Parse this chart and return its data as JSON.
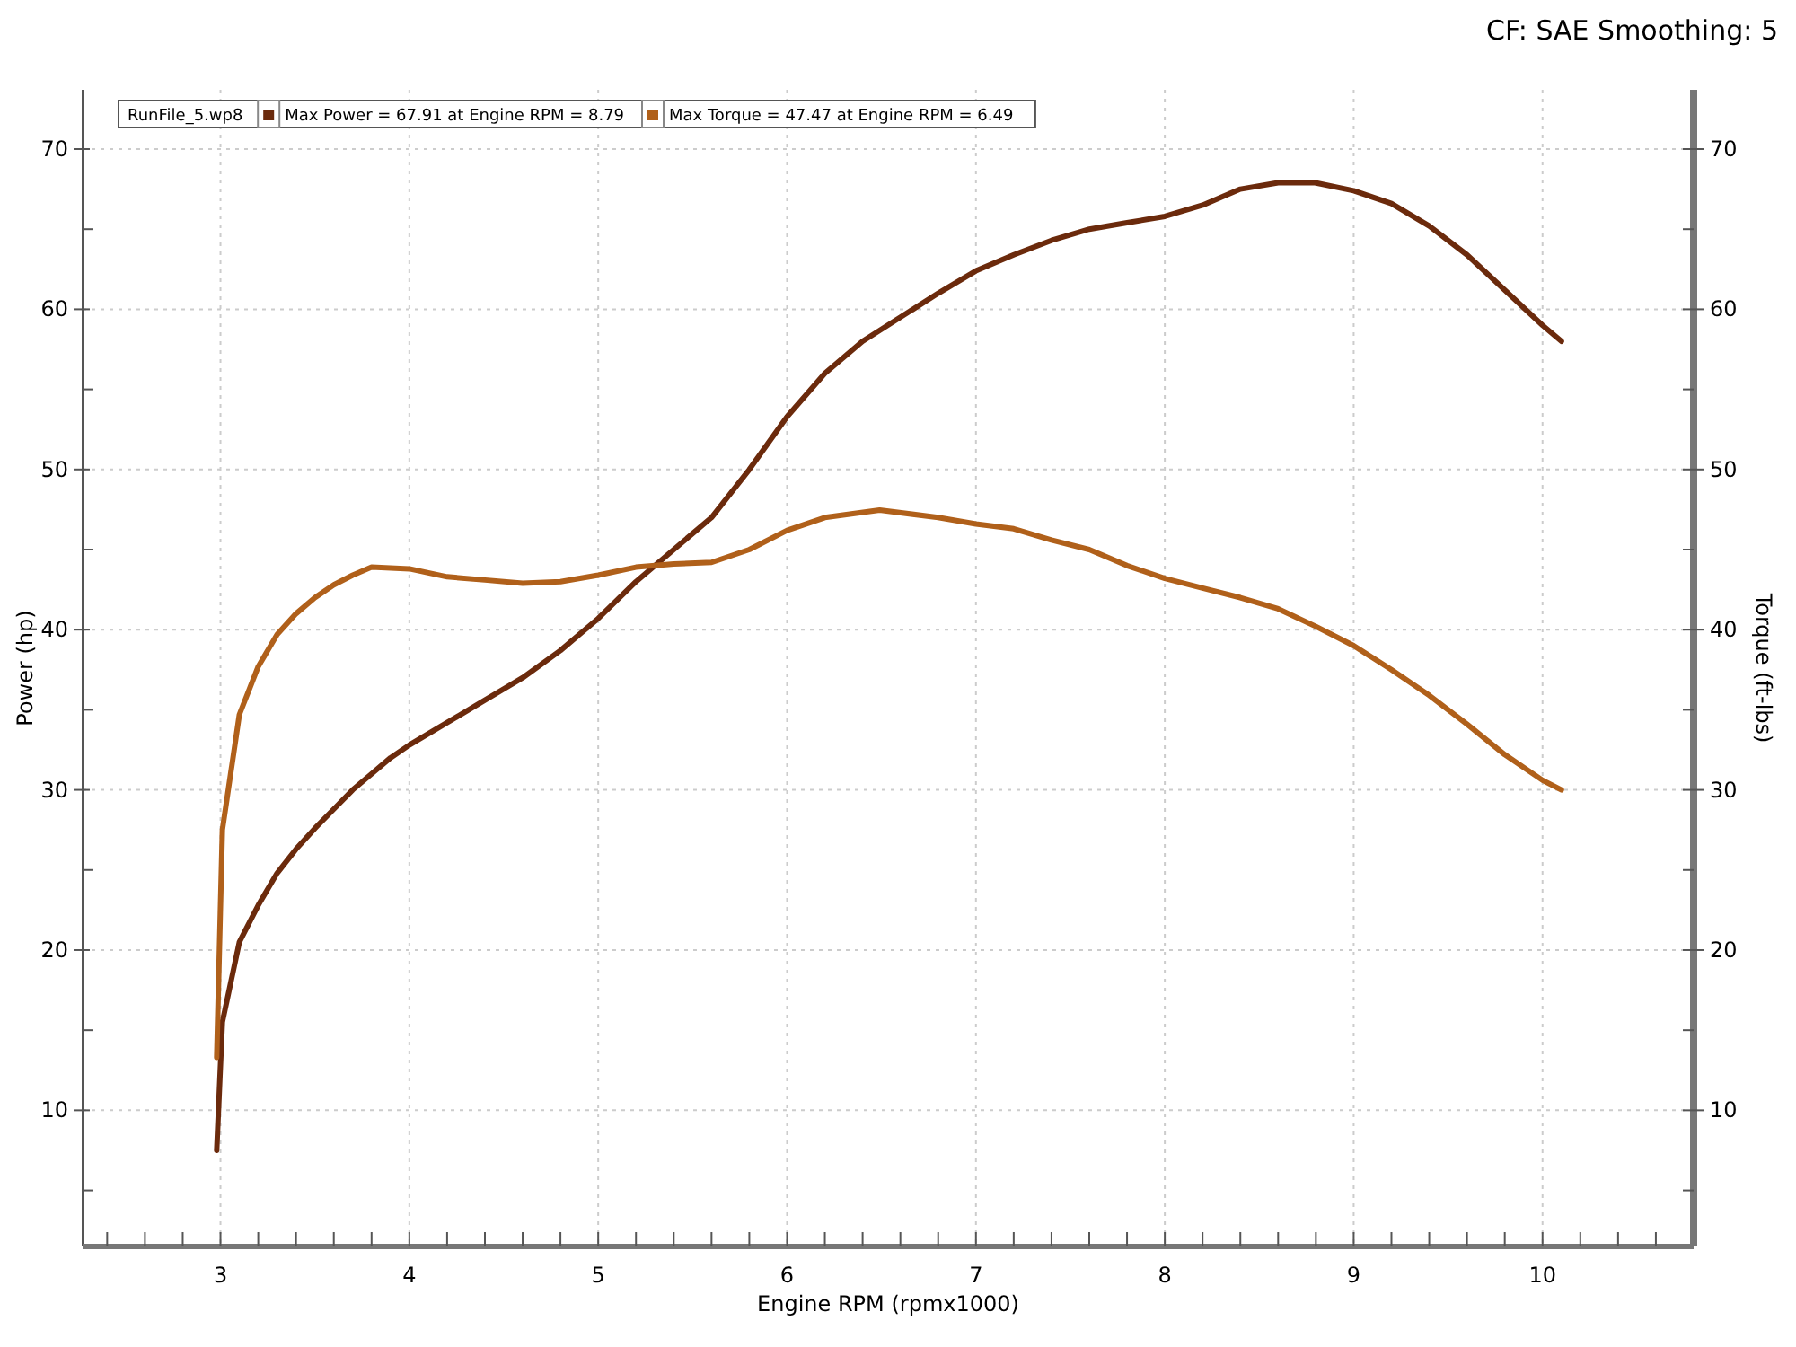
{
  "chart_data": {
    "type": "line",
    "subtitle": "CF: SAE Smoothing: 5",
    "xlabel": "Engine RPM (rpmx1000)",
    "ylabel": "Power (hp)",
    "y2label": "Torque (ft-lbs)",
    "legend_title": "RunFile_5.wp8",
    "legend": "top left",
    "grid": true,
    "line_style": "solid",
    "marker": "none",
    "xlim": [
      2.27,
      10.8
    ],
    "ylim": [
      1.5,
      73.7
    ],
    "y2lim": [
      1.5,
      73.7
    ],
    "xticks": [
      {
        "value": 2.4,
        "label": null
      },
      {
        "value": 2.6,
        "label": null
      },
      {
        "value": 2.8,
        "label": null
      },
      3,
      {
        "value": 3.2,
        "label": null
      },
      {
        "value": 3.4,
        "label": null
      },
      {
        "value": 3.6,
        "label": null
      },
      {
        "value": 3.8,
        "label": null
      },
      4,
      {
        "value": 4.2,
        "label": null
      },
      {
        "value": 4.4,
        "label": null
      },
      {
        "value": 4.6,
        "label": null
      },
      {
        "value": 4.8,
        "label": null
      },
      5,
      {
        "value": 5.2,
        "label": null
      },
      {
        "value": 5.4,
        "label": null
      },
      {
        "value": 5.6,
        "label": null
      },
      {
        "value": 5.8,
        "label": null
      },
      6,
      {
        "value": 6.2,
        "label": null
      },
      {
        "value": 6.4,
        "label": null
      },
      {
        "value": 6.6,
        "label": null
      },
      {
        "value": 6.8,
        "label": null
      },
      7,
      {
        "value": 7.2,
        "label": null
      },
      {
        "value": 7.4,
        "label": null
      },
      {
        "value": 7.6,
        "label": null
      },
      {
        "value": 7.8,
        "label": null
      },
      8,
      {
        "value": 8.2,
        "label": null
      },
      {
        "value": 8.4,
        "label": null
      },
      {
        "value": 8.6,
        "label": null
      },
      {
        "value": 8.8,
        "label": null
      },
      9,
      {
        "value": 9.2,
        "label": null
      },
      {
        "value": 9.4,
        "label": null
      },
      {
        "value": 9.6,
        "label": null
      },
      {
        "value": 9.8,
        "label": null
      },
      10,
      {
        "value": 10.2,
        "label": null
      },
      {
        "value": 10.4,
        "label": null
      },
      {
        "value": 10.6,
        "label": null
      }
    ],
    "yticks": [
      {
        "value": 5,
        "label": null
      },
      10,
      {
        "value": 15,
        "label": null
      },
      20,
      {
        "value": 25,
        "label": null
      },
      30,
      {
        "value": 35,
        "label": null
      },
      40,
      {
        "value": 45,
        "label": null
      },
      50,
      {
        "value": 55,
        "label": null
      },
      60,
      {
        "value": 65,
        "label": null
      },
      70
    ],
    "y2ticks": [
      {
        "value": 5,
        "label": null
      },
      10,
      {
        "value": 15,
        "label": null
      },
      20,
      {
        "value": 25,
        "label": null
      },
      30,
      {
        "value": 35,
        "label": null
      },
      40,
      {
        "value": 45,
        "label": null
      },
      50,
      {
        "value": 55,
        "label": null
      },
      60,
      {
        "value": 65,
        "label": null
      },
      70
    ],
    "series": [
      {
        "name": "Max Power = 67.91 at Engine RPM = 8.79",
        "color": "#6b2a0c",
        "x": [
          2.98,
          3.01,
          3.1,
          3.2,
          3.3,
          3.4,
          3.5,
          3.6,
          3.7,
          3.8,
          3.9,
          4.0,
          4.2,
          4.4,
          4.6,
          4.8,
          5.0,
          5.2,
          5.4,
          5.6,
          5.8,
          6.0,
          6.2,
          6.4,
          6.6,
          6.8,
          7.0,
          7.2,
          7.4,
          7.6,
          7.8,
          8.0,
          8.2,
          8.4,
          8.6,
          8.79,
          9.0,
          9.2,
          9.4,
          9.6,
          9.8,
          10.0,
          10.1
        ],
        "values": [
          7.5,
          15.5,
          20.5,
          22.8,
          24.8,
          26.3,
          27.6,
          28.8,
          30.0,
          31.0,
          32.0,
          32.8,
          34.2,
          35.6,
          37.0,
          38.7,
          40.7,
          43.0,
          45.0,
          47.0,
          50.0,
          53.3,
          56.0,
          58.0,
          59.5,
          61.0,
          62.4,
          63.4,
          64.3,
          65.0,
          65.4,
          65.8,
          66.5,
          67.5,
          67.9,
          67.91,
          67.4,
          66.6,
          65.2,
          63.4,
          61.2,
          59.0,
          58.0
        ]
      },
      {
        "name": "Max Torque = 47.47 at Engine RPM = 6.49",
        "color": "#b0601a",
        "axis": "y2",
        "x": [
          2.98,
          3.01,
          3.1,
          3.2,
          3.3,
          3.4,
          3.5,
          3.6,
          3.7,
          3.8,
          4.0,
          4.2,
          4.4,
          4.6,
          4.8,
          5.0,
          5.2,
          5.4,
          5.6,
          5.8,
          6.0,
          6.2,
          6.49,
          6.8,
          7.0,
          7.2,
          7.4,
          7.6,
          7.8,
          8.0,
          8.2,
          8.4,
          8.6,
          8.8,
          9.0,
          9.2,
          9.4,
          9.6,
          9.8,
          10.0,
          10.1
        ],
        "values": [
          13.3,
          27.5,
          34.7,
          37.7,
          39.7,
          41.0,
          42.0,
          42.8,
          43.4,
          43.9,
          43.8,
          43.3,
          43.1,
          42.9,
          43.0,
          43.4,
          43.9,
          44.1,
          44.2,
          45.0,
          46.2,
          47.0,
          47.47,
          47.0,
          46.6,
          46.3,
          45.6,
          45.0,
          44.0,
          43.2,
          42.6,
          42.0,
          41.3,
          40.2,
          39.0,
          37.5,
          35.9,
          34.1,
          32.2,
          30.6,
          30.0
        ]
      }
    ]
  }
}
